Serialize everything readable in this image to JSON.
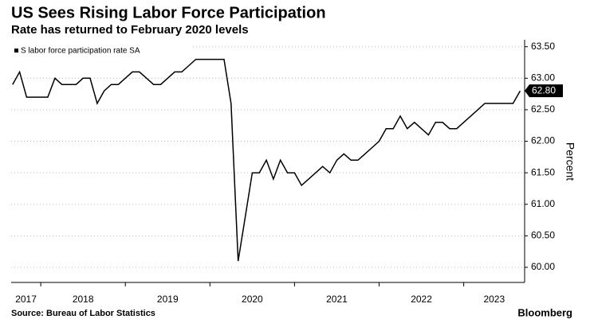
{
  "chart_data": {
    "type": "line",
    "title": "US Sees Rising Labor Force Participation",
    "subtitle": "Rate has returned to February 2020 levels",
    "y_label": "Percent",
    "source": "Source: Bureau of Labor Statistics",
    "brand": "Bloomberg",
    "x": [
      2017.667,
      2017.75,
      2017.833,
      2017.917,
      2018.0,
      2018.083,
      2018.167,
      2018.25,
      2018.333,
      2018.417,
      2018.5,
      2018.583,
      2018.667,
      2018.75,
      2018.833,
      2018.917,
      2019.0,
      2019.083,
      2019.167,
      2019.25,
      2019.333,
      2019.417,
      2019.5,
      2019.583,
      2019.667,
      2019.75,
      2019.833,
      2019.917,
      2020.0,
      2020.083,
      2020.167,
      2020.25,
      2020.333,
      2020.417,
      2020.5,
      2020.583,
      2020.667,
      2020.75,
      2020.833,
      2020.917,
      2021.0,
      2021.083,
      2021.167,
      2021.25,
      2021.333,
      2021.417,
      2021.5,
      2021.583,
      2021.667,
      2021.75,
      2021.833,
      2021.917,
      2022.0,
      2022.083,
      2022.167,
      2022.25,
      2022.333,
      2022.417,
      2022.5,
      2022.583,
      2022.667,
      2022.75,
      2022.833,
      2022.917,
      2023.0,
      2023.083,
      2023.167,
      2023.25,
      2023.333,
      2023.417,
      2023.5,
      2023.583,
      2023.667
    ],
    "series": [
      {
        "name": "S labor force participation rate SA",
        "color": "#000000",
        "last_value_label": "62.80",
        "values": [
          62.9,
          63.1,
          62.7,
          62.7,
          62.7,
          62.7,
          63.0,
          62.9,
          62.9,
          62.9,
          63.0,
          63.0,
          62.6,
          62.8,
          62.9,
          62.9,
          63.0,
          63.1,
          63.1,
          63.0,
          62.9,
          62.9,
          63.0,
          63.1,
          63.1,
          63.2,
          63.3,
          63.3,
          63.3,
          63.3,
          63.3,
          62.6,
          60.1,
          60.8,
          61.5,
          61.5,
          61.7,
          61.4,
          61.7,
          61.5,
          61.5,
          61.3,
          61.4,
          61.5,
          61.6,
          61.5,
          61.7,
          61.8,
          61.7,
          61.7,
          61.8,
          61.9,
          62.0,
          62.2,
          62.2,
          62.4,
          62.2,
          62.3,
          62.2,
          62.1,
          62.3,
          62.3,
          62.2,
          62.2,
          62.3,
          62.4,
          62.5,
          62.6,
          62.6,
          62.6,
          62.6,
          62.6,
          62.8
        ]
      }
    ],
    "xlim": [
      2017.65,
      2023.72
    ],
    "xticks": [
      {
        "value": 2017,
        "label": "2017"
      },
      {
        "value": 2018,
        "label": "2018"
      },
      {
        "value": 2019,
        "label": "2019"
      },
      {
        "value": 2020,
        "label": "2020"
      },
      {
        "value": 2021,
        "label": "2021"
      },
      {
        "value": 2022,
        "label": "2022"
      },
      {
        "value": 2023,
        "label": "2023"
      }
    ],
    "ylim": [
      59.76,
      63.61
    ],
    "yticks": [
      {
        "value": 60,
        "label": "60.00"
      },
      {
        "value": 60.5,
        "label": "60.50"
      },
      {
        "value": 61,
        "label": "61.00"
      },
      {
        "value": 61.5,
        "label": "61.50"
      },
      {
        "value": 62,
        "label": "62.00"
      },
      {
        "value": 62.5,
        "label": "62.50"
      },
      {
        "value": 63,
        "label": "63.00"
      },
      {
        "value": 63.5,
        "label": "63.50"
      }
    ],
    "grid": true
  }
}
